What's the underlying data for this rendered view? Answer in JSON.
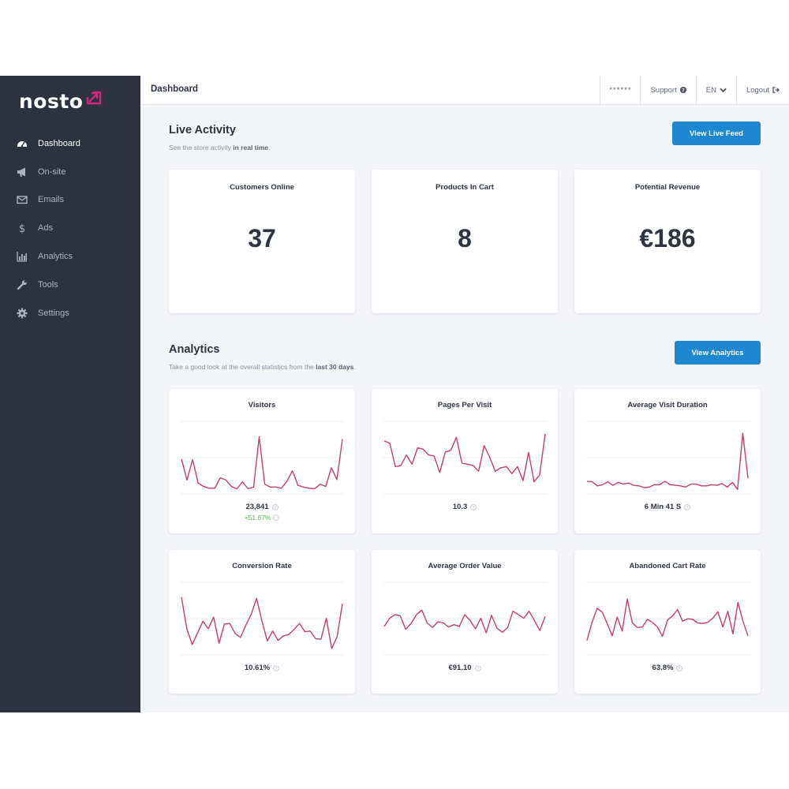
{
  "sidebar": {
    "logo": "nosto",
    "items": [
      {
        "label": "Dashboard",
        "icon": "dashboard-icon"
      },
      {
        "label": "On-site",
        "icon": "megaphone-icon"
      },
      {
        "label": "Emails",
        "icon": "envelope-icon"
      },
      {
        "label": "Ads",
        "icon": "dollar-icon"
      },
      {
        "label": "Analytics",
        "icon": "bar-chart-icon"
      },
      {
        "label": "Tools",
        "icon": "wrench-icon"
      },
      {
        "label": "Settings",
        "icon": "gear-icon"
      }
    ],
    "active_index": 0
  },
  "topbar": {
    "title": "Dashboard",
    "account_masked": "******",
    "support_label": "Support",
    "language": "EN",
    "logout_label": "Logout"
  },
  "live": {
    "title": "Live Activity",
    "subtitle_prefix": "See the store activity ",
    "subtitle_bold": "in real time",
    "subtitle_suffix": ".",
    "button_label": "View Live Feed",
    "cards": [
      {
        "title": "Customers Online",
        "value": "37"
      },
      {
        "title": "Products In Cart",
        "value": "8"
      },
      {
        "title": "Potential Revenue",
        "value": "€186"
      }
    ]
  },
  "analytics": {
    "title": "Analytics",
    "subtitle_prefix": "Take a good look at the overall statistics from the ",
    "subtitle_bold": "last 30 days",
    "subtitle_suffix": ".",
    "button_label": "View Analytics",
    "cards": [
      {
        "title": "Visitors",
        "value": "23,841",
        "delta": "+51.67%",
        "series": [
          0.53,
          0.17,
          0.52,
          0.12,
          0.06,
          0.03,
          0.03,
          0.21,
          0.17,
          0.06,
          0.02,
          0.14,
          0.02,
          0.05,
          0.91,
          0.1,
          0.05,
          0.05,
          0.03,
          0.15,
          0.33,
          0.08,
          0.05,
          0.03,
          0.02,
          0.1,
          0.06,
          0.38,
          0.18,
          0.87
        ]
      },
      {
        "title": "Pages Per Visit",
        "value": "10.3",
        "series": [
          0.84,
          0.8,
          0.4,
          0.42,
          0.6,
          0.44,
          0.72,
          0.7,
          0.6,
          0.58,
          0.3,
          0.65,
          0.68,
          0.9,
          0.46,
          0.44,
          0.42,
          0.32,
          0.76,
          0.56,
          0.32,
          0.38,
          0.4,
          0.28,
          0.4,
          0.16,
          0.64,
          0.14,
          0.26,
          0.96
        ]
      },
      {
        "title": "Average Visit Duration",
        "value": "6 Min 41 S",
        "series": [
          0.15,
          0.14,
          0.07,
          0.09,
          0.14,
          0.08,
          0.13,
          0.1,
          0.12,
          0.08,
          0.07,
          0.04,
          0.05,
          0.09,
          0.09,
          0.15,
          0.09,
          0.08,
          0.07,
          0.05,
          0.1,
          0.1,
          0.07,
          0.07,
          0.09,
          0.08,
          0.11,
          0.05,
          0.13,
          0.01,
          0.97,
          0.2
        ]
      },
      {
        "title": "Conversion Rate",
        "value": "10.61%",
        "series": [
          0.92,
          0.38,
          0.11,
          0.31,
          0.51,
          0.38,
          0.58,
          0.13,
          0.46,
          0.47,
          0.3,
          0.23,
          0.44,
          0.63,
          0.9,
          0.51,
          0.17,
          0.34,
          0.18,
          0.26,
          0.28,
          0.37,
          0.47,
          0.33,
          0.34,
          0.21,
          0.2,
          0.56,
          0.04,
          0.24,
          0.81
        ]
      },
      {
        "title": "Average Order Value",
        "value": "€91.10",
        "series": [
          0.42,
          0.56,
          0.62,
          0.6,
          0.37,
          0.47,
          0.62,
          0.7,
          0.48,
          0.4,
          0.5,
          0.48,
          0.41,
          0.45,
          0.42,
          0.62,
          0.52,
          0.38,
          0.56,
          0.31,
          0.61,
          0.39,
          0.32,
          0.4,
          0.68,
          0.62,
          0.56,
          0.68,
          0.52,
          0.35,
          0.59
        ]
      },
      {
        "title": "Abandoned Cart Rate",
        "value": "63.8%",
        "series": [
          0.18,
          0.49,
          0.73,
          0.67,
          0.47,
          0.26,
          0.58,
          0.34,
          0.89,
          0.48,
          0.4,
          0.41,
          0.54,
          0.49,
          0.41,
          0.25,
          0.53,
          0.6,
          0.71,
          0.51,
          0.55,
          0.54,
          0.48,
          0.47,
          0.49,
          0.56,
          0.67,
          0.41,
          0.68,
          0.29,
          0.83,
          0.51,
          0.26
        ]
      }
    ]
  },
  "colors": {
    "sidebar_bg": "#2c323f",
    "accent": "#1f87d0",
    "logo_mark": "#d6247f",
    "spark": "#c73d6e",
    "positive": "#5cb85c"
  }
}
